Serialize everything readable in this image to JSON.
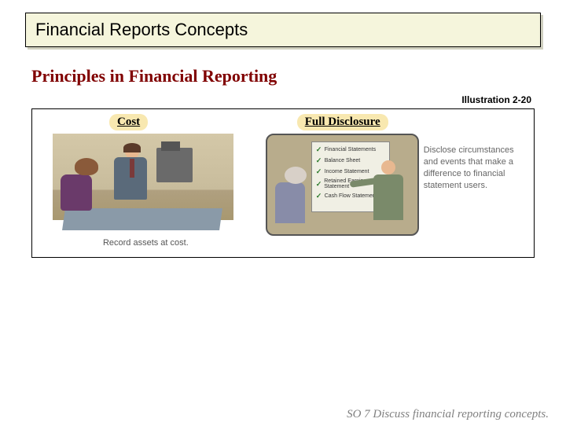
{
  "title": "Financial Reports Concepts",
  "section_title": "Principles in Financial Reporting",
  "illustration_ref": "Illustration 2-20",
  "cost": {
    "label": "Cost",
    "caption": "Record assets at cost."
  },
  "full_disclosure": {
    "label": "Full Disclosure",
    "board_items": [
      "Financial Statements",
      "Balance Sheet",
      "Income Statement",
      "Retained Earnings Statement",
      "Cash Flow Statement"
    ],
    "caption": "Disclose circumstances and events that make a difference to financial statement users."
  },
  "footer": "SO 7  Discuss financial reporting concepts.",
  "colors": {
    "title_bg": "#f5f5dc",
    "section_title": "#800000",
    "label_bg": "#f8e8b0",
    "footer": "#808080",
    "caption": "#666666"
  }
}
